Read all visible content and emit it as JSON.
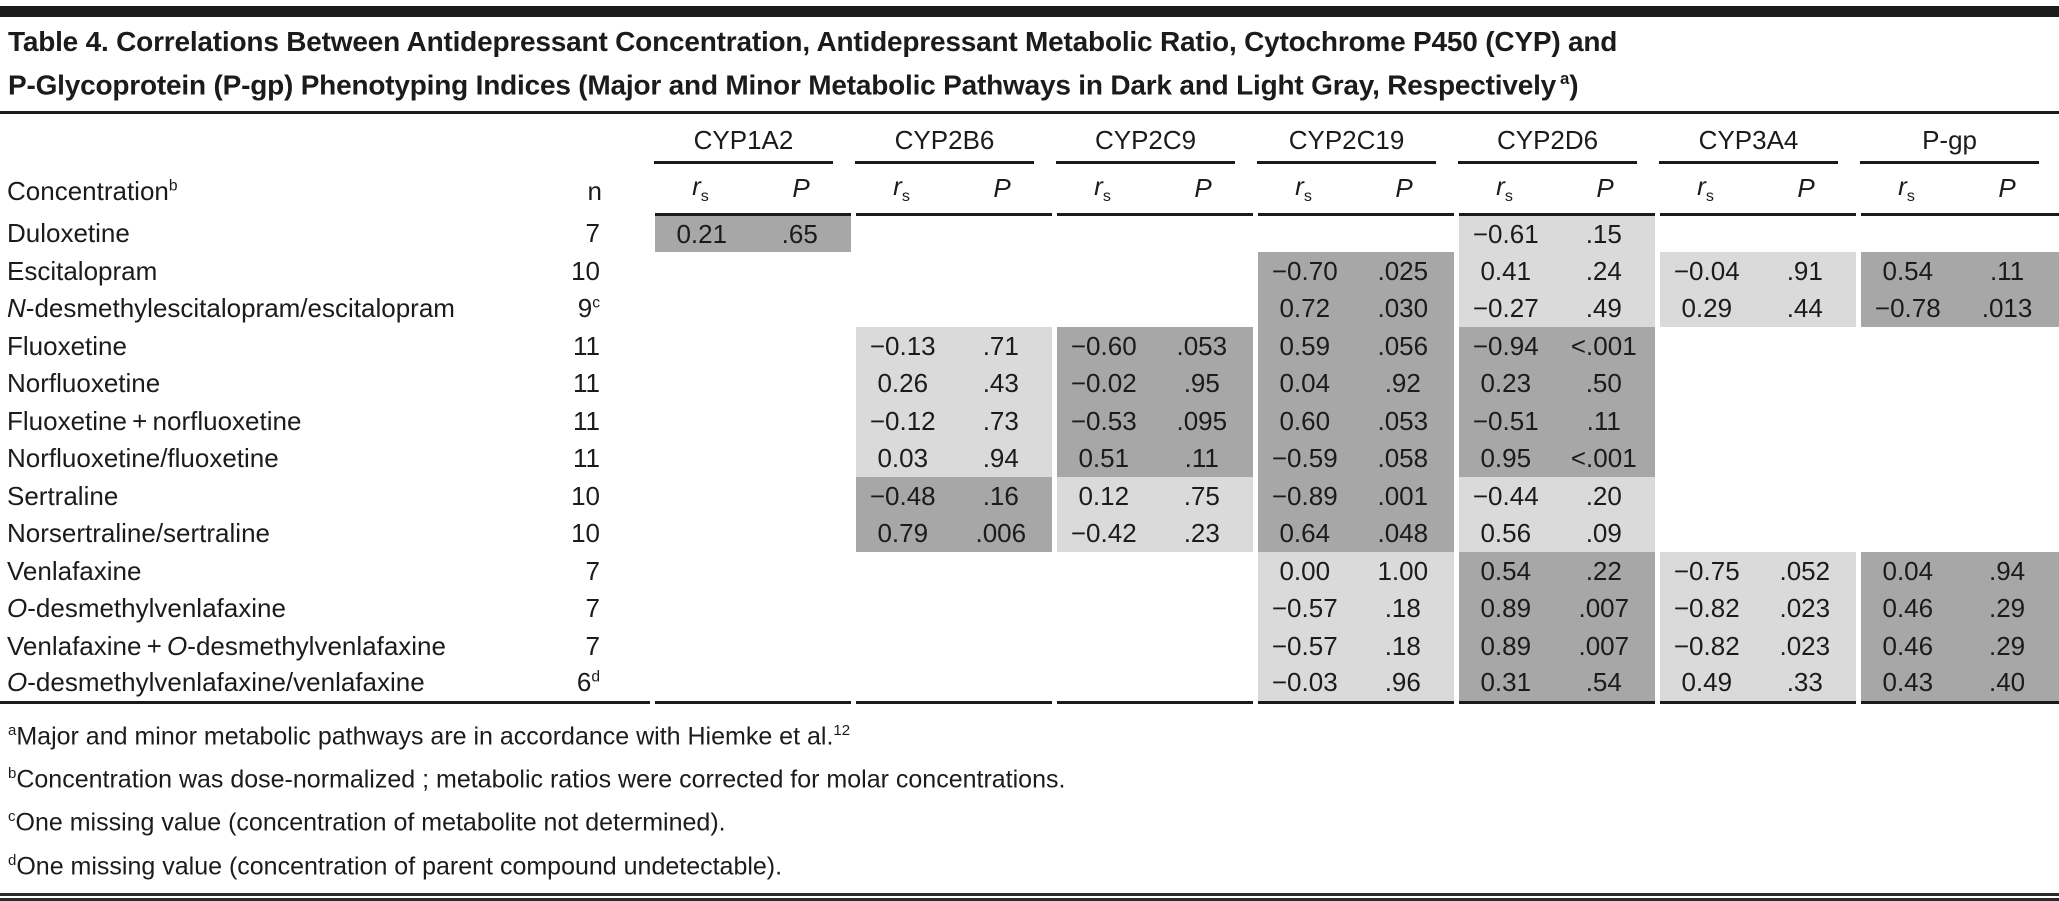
{
  "colors": {
    "dark": "#a7a7a7",
    "light": "#dadada",
    "rule": "#1c1c1c"
  },
  "title": {
    "line1": "Table 4. Correlations Between Antidepressant Concentration, Antidepressant Metabolic Ratio, Cytochrome P450 (CYP) and",
    "line2": "P-Glycoprotein (P-gp) Phenotyping Indices (Major and Minor Metabolic Pathways in Dark and Light Gray, Respectively",
    "sup": "a",
    "close": ")"
  },
  "table": {
    "header": {
      "concentration_label": "Concentration",
      "concentration_sup": "b",
      "n_label": "n",
      "groups": [
        "CYP1A2",
        "CYP2B6",
        "CYP2C9",
        "CYP2C19",
        "CYP2D6",
        "CYP3A4",
        "P-gp"
      ],
      "rs_label": "r",
      "rs_sub": "s",
      "p_label": "P"
    },
    "rows": [
      {
        "name_parts": [
          {
            "t": "Duloxetine"
          }
        ],
        "n": "7",
        "n_sup": "",
        "groups": [
          {
            "rs": "0.21",
            "p": ".65",
            "shade": "dark"
          },
          null,
          null,
          null,
          {
            "rs": "−0.61",
            "p": ".15",
            "shade": "light"
          },
          null,
          null
        ]
      },
      {
        "name_parts": [
          {
            "t": "Escitalopram"
          }
        ],
        "n": "10",
        "n_sup": "",
        "groups": [
          null,
          null,
          null,
          {
            "rs": "−0.70",
            "p": ".025",
            "shade": "dark"
          },
          {
            "rs": "0.41",
            "p": ".24",
            "shade": "light"
          },
          {
            "rs": "−0.04",
            "p": ".91",
            "shade": "light"
          },
          {
            "rs": "0.54",
            "p": ".11",
            "shade": "dark"
          }
        ]
      },
      {
        "name_parts": [
          {
            "t": "N",
            "i": true
          },
          {
            "t": "-desmethylescitalopram/escitalopram"
          }
        ],
        "n": "9",
        "n_sup": "c",
        "groups": [
          null,
          null,
          null,
          {
            "rs": "0.72",
            "p": ".030",
            "shade": "dark"
          },
          {
            "rs": "−0.27",
            "p": ".49",
            "shade": "light"
          },
          {
            "rs": "0.29",
            "p": ".44",
            "shade": "light"
          },
          {
            "rs": "−0.78",
            "p": ".013",
            "shade": "dark"
          }
        ]
      },
      {
        "name_parts": [
          {
            "t": "Fluoxetine"
          }
        ],
        "n": "11",
        "n_sup": "",
        "groups": [
          null,
          {
            "rs": "−0.13",
            "p": ".71",
            "shade": "light"
          },
          {
            "rs": "−0.60",
            "p": ".053",
            "shade": "dark"
          },
          {
            "rs": "0.59",
            "p": ".056",
            "shade": "dark"
          },
          {
            "rs": "−0.94",
            "p": "<.001",
            "shade": "dark"
          },
          null,
          null
        ]
      },
      {
        "name_parts": [
          {
            "t": "Norfluoxetine"
          }
        ],
        "n": "11",
        "n_sup": "",
        "groups": [
          null,
          {
            "rs": "0.26",
            "p": ".43",
            "shade": "light"
          },
          {
            "rs": "−0.02",
            "p": ".95",
            "shade": "dark"
          },
          {
            "rs": "0.04",
            "p": ".92",
            "shade": "dark"
          },
          {
            "rs": "0.23",
            "p": ".50",
            "shade": "dark"
          },
          null,
          null
        ]
      },
      {
        "name_parts": [
          {
            "t": "Fluoxetine + norfluoxetine"
          }
        ],
        "n": "11",
        "n_sup": "",
        "groups": [
          null,
          {
            "rs": "−0.12",
            "p": ".73",
            "shade": "light"
          },
          {
            "rs": "−0.53",
            "p": ".095",
            "shade": "dark"
          },
          {
            "rs": "0.60",
            "p": ".053",
            "shade": "dark"
          },
          {
            "rs": "−0.51",
            "p": ".11",
            "shade": "dark"
          },
          null,
          null
        ]
      },
      {
        "name_parts": [
          {
            "t": "Norfluoxetine/fluoxetine"
          }
        ],
        "n": "11",
        "n_sup": "",
        "groups": [
          null,
          {
            "rs": "0.03",
            "p": ".94",
            "shade": "light"
          },
          {
            "rs": "0.51",
            "p": ".11",
            "shade": "dark"
          },
          {
            "rs": "−0.59",
            "p": ".058",
            "shade": "dark"
          },
          {
            "rs": "0.95",
            "p": "<.001",
            "shade": "dark"
          },
          null,
          null
        ]
      },
      {
        "name_parts": [
          {
            "t": "Sertraline"
          }
        ],
        "n": "10",
        "n_sup": "",
        "groups": [
          null,
          {
            "rs": "−0.48",
            "p": ".16",
            "shade": "dark"
          },
          {
            "rs": "0.12",
            "p": ".75",
            "shade": "light"
          },
          {
            "rs": "−0.89",
            "p": ".001",
            "shade": "dark"
          },
          {
            "rs": "−0.44",
            "p": ".20",
            "shade": "light"
          },
          null,
          null
        ]
      },
      {
        "name_parts": [
          {
            "t": "Norsertraline/sertraline"
          }
        ],
        "n": "10",
        "n_sup": "",
        "groups": [
          null,
          {
            "rs": "0.79",
            "p": ".006",
            "shade": "dark"
          },
          {
            "rs": "−0.42",
            "p": ".23",
            "shade": "light"
          },
          {
            "rs": "0.64",
            "p": ".048",
            "shade": "dark"
          },
          {
            "rs": "0.56",
            "p": ".09",
            "shade": "light"
          },
          null,
          null
        ]
      },
      {
        "name_parts": [
          {
            "t": "Venlafaxine"
          }
        ],
        "n": "7",
        "n_sup": "",
        "groups": [
          null,
          null,
          null,
          {
            "rs": "0.00",
            "p": "1.00",
            "shade": "light"
          },
          {
            "rs": "0.54",
            "p": ".22",
            "shade": "dark"
          },
          {
            "rs": "−0.75",
            "p": ".052",
            "shade": "light"
          },
          {
            "rs": "0.04",
            "p": ".94",
            "shade": "dark"
          }
        ]
      },
      {
        "name_parts": [
          {
            "t": "O",
            "i": true
          },
          {
            "t": "-desmethylvenlafaxine"
          }
        ],
        "n": "7",
        "n_sup": "",
        "groups": [
          null,
          null,
          null,
          {
            "rs": "−0.57",
            "p": ".18",
            "shade": "light"
          },
          {
            "rs": "0.89",
            "p": ".007",
            "shade": "dark"
          },
          {
            "rs": "−0.82",
            "p": ".023",
            "shade": "light"
          },
          {
            "rs": "0.46",
            "p": ".29",
            "shade": "dark"
          }
        ]
      },
      {
        "name_parts": [
          {
            "t": "Venlafaxine + "
          },
          {
            "t": "O",
            "i": true
          },
          {
            "t": "-desmethylvenlafaxine"
          }
        ],
        "n": "7",
        "n_sup": "",
        "groups": [
          null,
          null,
          null,
          {
            "rs": "−0.57",
            "p": ".18",
            "shade": "light"
          },
          {
            "rs": "0.89",
            "p": ".007",
            "shade": "dark"
          },
          {
            "rs": "−0.82",
            "p": ".023",
            "shade": "light"
          },
          {
            "rs": "0.46",
            "p": ".29",
            "shade": "dark"
          }
        ]
      },
      {
        "name_parts": [
          {
            "t": "O",
            "i": true
          },
          {
            "t": "-desmethylvenlafaxine/venlafaxine"
          }
        ],
        "n": "6",
        "n_sup": "d",
        "groups": [
          null,
          null,
          null,
          {
            "rs": "−0.03",
            "p": ".96",
            "shade": "light"
          },
          {
            "rs": "0.31",
            "p": ".54",
            "shade": "dark"
          },
          {
            "rs": "0.49",
            "p": ".33",
            "shade": "light"
          },
          {
            "rs": "0.43",
            "p": ".40",
            "shade": "dark"
          }
        ]
      }
    ]
  },
  "footnotes": [
    {
      "sup": "a",
      "text": "Major and minor metabolic pathways are in accordance with Hiemke et al.",
      "ref": "12"
    },
    {
      "sup": "b",
      "text": "Concentration was dose-normalized ; metabolic ratios were corrected for molar concentrations.",
      "ref": ""
    },
    {
      "sup": "c",
      "text": "One missing value (concentration of metabolite not determined).",
      "ref": ""
    },
    {
      "sup": "d",
      "text": "One missing value (concentration of parent compound undetectable).",
      "ref": ""
    }
  ]
}
